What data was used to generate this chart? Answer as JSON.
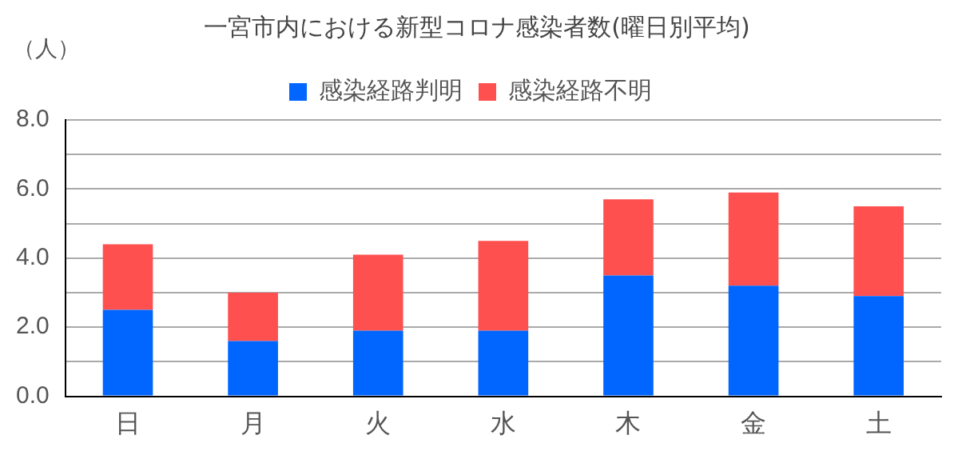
{
  "chart_data": {
    "type": "bar",
    "title": "一宮市内における新型コロナ感染者数(曜日別平均)",
    "ylabel": "（人）",
    "categories": [
      "日",
      "月",
      "火",
      "水",
      "木",
      "金",
      "土"
    ],
    "series": [
      {
        "name": "感染経路判明",
        "color": "#0066ff",
        "values": [
          2.5,
          1.6,
          1.9,
          1.9,
          3.5,
          3.2,
          2.9
        ]
      },
      {
        "name": "感染経路不明",
        "color": "#ff5050",
        "values": [
          1.9,
          1.4,
          2.2,
          2.6,
          2.2,
          2.7,
          2.6
        ]
      }
    ],
    "stacked": true,
    "ylim": [
      0,
      8
    ],
    "yticks": [
      {
        "value": 0,
        "label": "0.0"
      },
      {
        "value": 1,
        "label": null
      },
      {
        "value": 2,
        "label": "2.0"
      },
      {
        "value": 3,
        "label": null
      },
      {
        "value": 4,
        "label": "4.0"
      },
      {
        "value": 5,
        "label": null
      },
      {
        "value": 6,
        "label": "6.0"
      },
      {
        "value": 7,
        "label": null
      },
      {
        "value": 8,
        "label": "8.0"
      }
    ],
    "grid": "y",
    "legend": "top"
  }
}
